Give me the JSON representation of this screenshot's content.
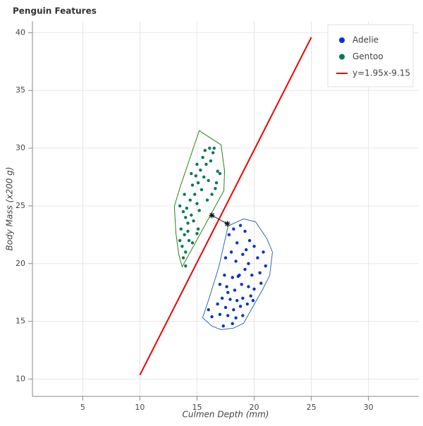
{
  "chart_data": {
    "type": "scatter",
    "title": "Penguin Features",
    "xlabel": "Culmen Depth (mm)",
    "ylabel": "Body Mass (x200 g)",
    "xlim": [
      0.6,
      34.4
    ],
    "ylim": [
      8.5,
      41
    ],
    "xticks": [
      5,
      10,
      15,
      20,
      25,
      30
    ],
    "yticks": [
      10,
      15,
      20,
      25,
      30,
      35,
      40
    ],
    "grid": true,
    "legend": "top-right",
    "series": [
      {
        "name": "Adelie",
        "type": "scatter",
        "color": "#0033cc",
        "hull_color": "#2a6bb0",
        "x": [
          17.8,
          18.2,
          18.8,
          19.2,
          19.6,
          20.0,
          18.5,
          18.0,
          17.5,
          18.4,
          19.0,
          19.5,
          20.3,
          20.8,
          21.0,
          20.5,
          19.8,
          19.2,
          18.7,
          18.1,
          17.4,
          17.0,
          17.6,
          18.3,
          18.9,
          19.5,
          20.0,
          20.6,
          19.7,
          19.0,
          18.5,
          17.9,
          17.2,
          16.8,
          17.5,
          18.2,
          18.8,
          19.4,
          19.9,
          17.0,
          17.7,
          18.4,
          19.0,
          16.3,
          17.3,
          18.1,
          16.0,
          17.7,
          18.6,
          19.3
        ],
        "values": [
          22.5,
          23.0,
          23.3,
          22.8,
          22.0,
          21.5,
          21.8,
          21.0,
          20.5,
          20.2,
          20.8,
          20.0,
          20.5,
          21.0,
          19.8,
          19.2,
          19.0,
          19.5,
          19.0,
          18.8,
          19.0,
          18.2,
          18.0,
          17.7,
          18.2,
          18.0,
          17.8,
          18.3,
          17.2,
          17.0,
          16.8,
          16.9,
          17.0,
          16.5,
          16.2,
          16.0,
          16.3,
          16.5,
          16.8,
          15.6,
          15.5,
          15.3,
          15.5,
          15.4,
          14.6,
          14.8,
          16.0,
          17.5,
          18.9,
          21.2
        ],
        "hull": {
          "x": [
            19.07,
            20.12,
            21.11,
            21.6,
            21.36,
            20.74,
            19.07,
            18.15,
            17.1,
            16.3,
            15.49,
            16.11,
            16.91,
            17.72
          ],
          "values": [
            23.87,
            23.63,
            22.16,
            21.0,
            18.99,
            17.76,
            14.83,
            14.4,
            14.28,
            14.59,
            15.32,
            17.15,
            19.72,
            23.26
          ]
        }
      },
      {
        "name": "Gentoo",
        "type": "scatter",
        "color": "#007a55",
        "hull_color": "#2e7d1e",
        "x": [
          13.5,
          13.8,
          14.0,
          14.2,
          13.6,
          13.9,
          14.3,
          13.7,
          14.0,
          13.8,
          14.1,
          14.5,
          14.7,
          14.4,
          14.8,
          15.0,
          15.2,
          14.6,
          15.1,
          15.4,
          14.9,
          15.3,
          15.6,
          15.8,
          16.0,
          16.2,
          15.5,
          16.4,
          16.5,
          16.1,
          15.7,
          16.8,
          17.0,
          16.6,
          16.3,
          15.9,
          15.0,
          14.5,
          13.9,
          14.2,
          15.1,
          14.6,
          15.0,
          13.5,
          14.0,
          16.7
        ],
        "values": [
          25.0,
          24.5,
          24.0,
          23.5,
          23.0,
          22.5,
          22.0,
          21.5,
          21.0,
          20.5,
          24.8,
          24.2,
          23.7,
          25.5,
          26.0,
          25.2,
          24.6,
          26.8,
          27.0,
          26.4,
          27.6,
          28.1,
          27.5,
          28.6,
          27.2,
          28.9,
          29.2,
          29.6,
          30.0,
          30.0,
          29.8,
          28.0,
          27.8,
          26.5,
          26.0,
          25.5,
          28.6,
          27.8,
          26.0,
          22.8,
          23.0,
          21.8,
          22.6,
          22.0,
          19.8,
          27.0
        ],
        "hull": {
          "x": [
            15.19,
            17.1,
            17.41,
            17.35,
            13.7,
            13.4,
            13.15,
            13.02,
            13.52
          ],
          "values": [
            31.51,
            30.29,
            28.03,
            26.32,
            19.72,
            20.82,
            22.65,
            24.97,
            26.62
          ]
        }
      },
      {
        "name": "y=1.95x-9.15",
        "type": "line",
        "color": "#ee0000",
        "x": [
          10,
          25
        ],
        "values": [
          10.35,
          39.6
        ]
      }
    ],
    "markers": {
      "x": [
        16.3,
        17.65
      ],
      "values": [
        24.18,
        23.45
      ]
    }
  }
}
